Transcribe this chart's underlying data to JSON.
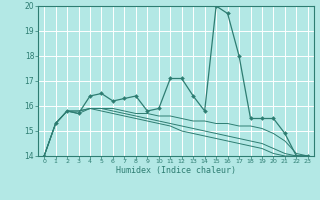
{
  "title": "",
  "xlabel": "Humidex (Indice chaleur)",
  "ylabel": "",
  "bg_color": "#b3e8e5",
  "grid_color": "#ffffff",
  "line_color": "#2e7d72",
  "xlim": [
    -0.5,
    23.5
  ],
  "ylim": [
    14,
    20
  ],
  "xticks": [
    0,
    1,
    2,
    3,
    4,
    5,
    6,
    7,
    8,
    9,
    10,
    11,
    12,
    13,
    14,
    15,
    16,
    17,
    18,
    19,
    20,
    21,
    22,
    23
  ],
  "yticks": [
    14,
    15,
    16,
    17,
    18,
    19,
    20
  ],
  "series": [
    {
      "x": [
        0,
        1,
        2,
        3,
        4,
        5,
        6,
        7,
        8,
        9,
        10,
        11,
        12,
        13,
        14,
        15,
        16,
        17,
        18,
        19,
        20,
        21,
        22,
        23
      ],
      "y": [
        14.0,
        15.3,
        15.8,
        15.7,
        16.4,
        16.5,
        16.2,
        16.3,
        16.4,
        15.8,
        15.9,
        17.1,
        17.1,
        16.4,
        15.8,
        20.0,
        19.7,
        18.0,
        15.5,
        15.5,
        15.5,
        14.9,
        14.0,
        14.0
      ],
      "has_markers": true
    },
    {
      "x": [
        0,
        1,
        2,
        3,
        4,
        5,
        6,
        7,
        8,
        9,
        10,
        11,
        12,
        13,
        14,
        15,
        16,
        17,
        18,
        19,
        20,
        21,
        22,
        23
      ],
      "y": [
        14.0,
        15.3,
        15.8,
        15.8,
        15.9,
        15.9,
        15.9,
        15.8,
        15.7,
        15.7,
        15.6,
        15.6,
        15.5,
        15.4,
        15.4,
        15.3,
        15.3,
        15.2,
        15.2,
        15.1,
        14.9,
        14.6,
        14.1,
        14.0
      ],
      "has_markers": false
    },
    {
      "x": [
        0,
        1,
        2,
        3,
        4,
        5,
        6,
        7,
        8,
        9,
        10,
        11,
        12,
        13,
        14,
        15,
        16,
        17,
        18,
        19,
        20,
        21,
        22,
        23
      ],
      "y": [
        14.0,
        15.3,
        15.8,
        15.8,
        15.9,
        15.9,
        15.8,
        15.7,
        15.6,
        15.5,
        15.4,
        15.3,
        15.2,
        15.1,
        15.0,
        14.9,
        14.8,
        14.7,
        14.6,
        14.5,
        14.3,
        14.1,
        14.0,
        14.0
      ],
      "has_markers": false
    },
    {
      "x": [
        0,
        1,
        2,
        3,
        4,
        5,
        6,
        7,
        8,
        9,
        10,
        11,
        12,
        13,
        14,
        15,
        16,
        17,
        18,
        19,
        20,
        21,
        22,
        23
      ],
      "y": [
        14.0,
        15.3,
        15.8,
        15.7,
        15.9,
        15.8,
        15.7,
        15.6,
        15.5,
        15.4,
        15.3,
        15.2,
        15.0,
        14.9,
        14.8,
        14.7,
        14.6,
        14.5,
        14.4,
        14.3,
        14.1,
        14.0,
        14.0,
        14.0
      ],
      "has_markers": false
    }
  ]
}
